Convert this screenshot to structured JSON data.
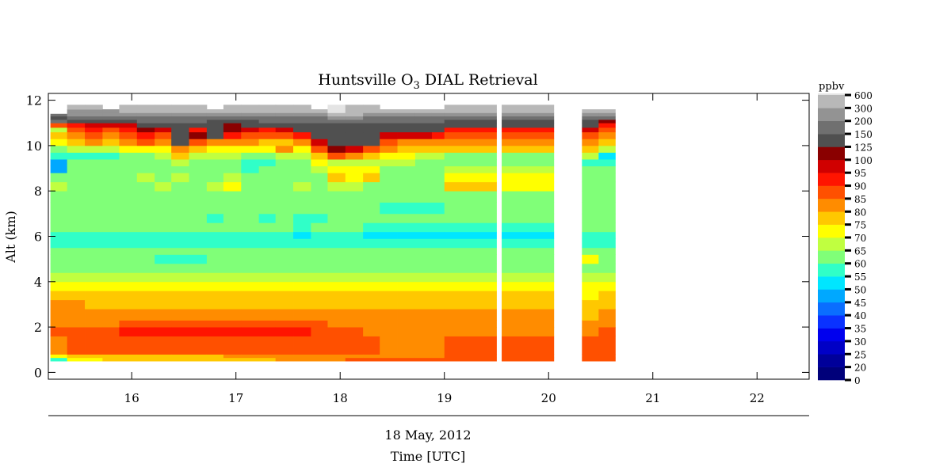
{
  "chart_data": {
    "type": "heatmap",
    "title_prefix": "Huntsville O",
    "title_subscript": "3",
    "title_suffix": " DIAL Retrieval",
    "ylabel": "Alt (km)",
    "xlabel": "Time [UTC]",
    "date_label": "18 May, 2012",
    "xlim": [
      15.2,
      22.5
    ],
    "ylim": [
      -0.3,
      12.3
    ],
    "x_ticks": [
      16,
      17,
      18,
      19,
      20,
      21,
      22
    ],
    "y_ticks": [
      0,
      2,
      4,
      6,
      8,
      10,
      12
    ],
    "colorbar": {
      "unit": "ppbv",
      "levels": [
        "0",
        "20",
        "25",
        "30",
        "35",
        "40",
        "45",
        "50",
        "55",
        "60",
        "65",
        "70",
        "75",
        "80",
        "85",
        "90",
        "95",
        "100",
        "125",
        "150",
        "200",
        "300",
        "600"
      ],
      "colors": [
        "#00007a",
        "#00009a",
        "#0000c6",
        "#0000ee",
        "#0a32ff",
        "#0a6eff",
        "#00a8ff",
        "#00e6ff",
        "#30ffc8",
        "#80ff78",
        "#c0ff40",
        "#ffff00",
        "#ffc800",
        "#ff8c00",
        "#ff5000",
        "#ff1400",
        "#d00000",
        "#8a0000",
        "#505050",
        "#707070",
        "#939393",
        "#b8b8b8",
        "#e4e4e4"
      ]
    },
    "y_levels": [
      0.5,
      0.65,
      0.8,
      1.6,
      2.0,
      2.3,
      2.8,
      3.2,
      3.6,
      4.0,
      4.4,
      4.8,
      5.2,
      5.5,
      5.9,
      6.2,
      6.6,
      7.0,
      7.5,
      8.0,
      8.4,
      8.8,
      9.1,
      9.4,
      9.7,
      10.0,
      10.3,
      10.6,
      10.8,
      11.0,
      11.15,
      11.3,
      11.45,
      11.6,
      11.8,
      12.0
    ],
    "profiles": [
      {
        "x0": 15.22,
        "x1": 15.38,
        "top": 11.4,
        "p": [
          55,
          70,
          80,
          85,
          80,
          80,
          80,
          75,
          70,
          65,
          60,
          60,
          60,
          55,
          55,
          60,
          60,
          60,
          60,
          65,
          60,
          45,
          45,
          55,
          60,
          70,
          75,
          65,
          85,
          150,
          125,
          150,
          200,
          300
        ]
      },
      {
        "x0": 15.38,
        "x1": 15.55,
        "top": 12.0,
        "p": [
          70,
          75,
          85,
          85,
          80,
          80,
          80,
          75,
          70,
          65,
          60,
          60,
          60,
          55,
          55,
          60,
          60,
          60,
          60,
          60,
          60,
          60,
          60,
          55,
          65,
          75,
          80,
          85,
          90,
          125,
          150,
          200,
          200,
          300
        ]
      },
      {
        "x0": 15.55,
        "x1": 15.72,
        "top": 12.0,
        "p": [
          70,
          75,
          85,
          85,
          80,
          80,
          75,
          75,
          70,
          65,
          60,
          60,
          60,
          55,
          55,
          60,
          60,
          60,
          60,
          60,
          60,
          60,
          60,
          55,
          65,
          80,
          85,
          90,
          95,
          125,
          150,
          200,
          200,
          300
        ]
      },
      {
        "x0": 15.72,
        "x1": 15.88,
        "top": 11.6,
        "p": [
          75,
          75,
          85,
          85,
          80,
          80,
          75,
          75,
          70,
          65,
          60,
          60,
          60,
          55,
          55,
          60,
          60,
          60,
          60,
          60,
          60,
          60,
          60,
          55,
          65,
          75,
          80,
          85,
          95,
          125,
          150,
          200,
          200
        ]
      },
      {
        "x0": 15.88,
        "x1": 16.05,
        "top": 12.0,
        "p": [
          75,
          75,
          85,
          90,
          85,
          80,
          75,
          75,
          70,
          65,
          60,
          60,
          60,
          55,
          55,
          60,
          60,
          60,
          60,
          60,
          60,
          60,
          60,
          60,
          70,
          80,
          85,
          90,
          95,
          125,
          150,
          200,
          300,
          300
        ]
      },
      {
        "x0": 16.05,
        "x1": 16.22,
        "top": 12.0,
        "p": [
          75,
          75,
          85,
          90,
          85,
          80,
          75,
          75,
          70,
          65,
          60,
          60,
          60,
          55,
          55,
          60,
          60,
          60,
          60,
          60,
          65,
          60,
          60,
          60,
          70,
          85,
          90,
          100,
          125,
          150,
          150,
          200,
          300,
          300
        ]
      },
      {
        "x0": 16.22,
        "x1": 16.38,
        "top": 12.0,
        "p": [
          75,
          75,
          85,
          90,
          85,
          80,
          75,
          75,
          70,
          65,
          60,
          55,
          60,
          55,
          55,
          60,
          60,
          60,
          60,
          65,
          60,
          60,
          60,
          65,
          70,
          80,
          85,
          95,
          125,
          150,
          150,
          200,
          300,
          300
        ]
      },
      {
        "x0": 16.38,
        "x1": 16.55,
        "top": 12.0,
        "p": [
          75,
          75,
          85,
          90,
          85,
          80,
          75,
          75,
          70,
          65,
          60,
          55,
          60,
          55,
          55,
          60,
          60,
          60,
          60,
          60,
          65,
          60,
          65,
          75,
          80,
          125,
          125,
          125,
          125,
          150,
          150,
          200,
          300,
          300
        ]
      },
      {
        "x0": 16.55,
        "x1": 16.72,
        "top": 12.0,
        "p": [
          75,
          75,
          85,
          90,
          85,
          80,
          75,
          75,
          70,
          65,
          60,
          55,
          60,
          55,
          55,
          60,
          60,
          60,
          60,
          60,
          60,
          60,
          60,
          65,
          75,
          85,
          100,
          90,
          125,
          150,
          150,
          200,
          300,
          300
        ]
      },
      {
        "x0": 16.72,
        "x1": 16.88,
        "top": 11.8,
        "p": [
          75,
          75,
          85,
          90,
          85,
          80,
          75,
          75,
          70,
          65,
          60,
          60,
          60,
          55,
          55,
          60,
          55,
          60,
          60,
          65,
          60,
          60,
          60,
          65,
          70,
          80,
          125,
          125,
          125,
          125,
          150,
          200,
          300
        ]
      },
      {
        "x0": 16.88,
        "x1": 17.05,
        "top": 12.0,
        "p": [
          75,
          80,
          85,
          90,
          85,
          80,
          75,
          75,
          70,
          65,
          60,
          60,
          60,
          55,
          55,
          60,
          60,
          60,
          60,
          70,
          65,
          60,
          60,
          65,
          70,
          80,
          90,
          100,
          100,
          125,
          150,
          200,
          300,
          300
        ]
      },
      {
        "x0": 17.05,
        "x1": 17.22,
        "top": 12.0,
        "p": [
          75,
          80,
          85,
          90,
          85,
          80,
          75,
          75,
          70,
          65,
          60,
          60,
          60,
          55,
          55,
          60,
          60,
          60,
          60,
          60,
          60,
          55,
          55,
          60,
          70,
          80,
          85,
          95,
          125,
          125,
          150,
          200,
          300,
          300
        ]
      },
      {
        "x0": 17.22,
        "x1": 17.38,
        "top": 12.0,
        "p": [
          75,
          80,
          85,
          90,
          85,
          80,
          75,
          75,
          70,
          65,
          60,
          60,
          60,
          55,
          55,
          60,
          55,
          60,
          60,
          60,
          60,
          60,
          55,
          60,
          70,
          75,
          85,
          90,
          125,
          150,
          150,
          200,
          300,
          300
        ]
      },
      {
        "x0": 17.38,
        "x1": 17.55,
        "top": 12.0,
        "p": [
          80,
          80,
          85,
          90,
          85,
          80,
          75,
          75,
          70,
          65,
          60,
          60,
          60,
          55,
          55,
          60,
          60,
          60,
          60,
          60,
          60,
          60,
          60,
          65,
          80,
          75,
          85,
          95,
          125,
          150,
          150,
          200,
          300,
          300
        ]
      },
      {
        "x0": 17.55,
        "x1": 17.72,
        "top": 12.0,
        "p": [
          80,
          80,
          85,
          90,
          85,
          80,
          75,
          75,
          70,
          65,
          60,
          60,
          60,
          55,
          50,
          55,
          55,
          60,
          60,
          65,
          60,
          60,
          60,
          65,
          70,
          80,
          90,
          125,
          125,
          150,
          150,
          200,
          300,
          300
        ]
      },
      {
        "x0": 17.72,
        "x1": 17.88,
        "top": 11.8,
        "p": [
          80,
          80,
          85,
          85,
          85,
          80,
          75,
          75,
          70,
          65,
          60,
          60,
          60,
          55,
          55,
          60,
          55,
          60,
          60,
          60,
          60,
          65,
          70,
          75,
          85,
          95,
          125,
          125,
          125,
          150,
          150,
          200,
          300
        ]
      },
      {
        "x0": 17.88,
        "x1": 18.05,
        "top": 12.0,
        "p": [
          80,
          80,
          85,
          85,
          80,
          80,
          75,
          75,
          70,
          65,
          60,
          60,
          60,
          55,
          55,
          60,
          60,
          60,
          60,
          65,
          75,
          70,
          65,
          85,
          100,
          125,
          125,
          125,
          125,
          150,
          200,
          300,
          600,
          600
        ]
      },
      {
        "x0": 18.05,
        "x1": 18.22,
        "top": 12.0,
        "p": [
          85,
          80,
          85,
          85,
          80,
          80,
          75,
          75,
          70,
          65,
          60,
          60,
          60,
          55,
          55,
          60,
          60,
          60,
          60,
          65,
          70,
          70,
          65,
          80,
          95,
          125,
          125,
          125,
          125,
          150,
          200,
          300,
          300,
          300
        ]
      },
      {
        "x0": 18.22,
        "x1": 18.38,
        "top": 12.0,
        "p": [
          85,
          80,
          85,
          80,
          80,
          80,
          75,
          75,
          70,
          65,
          60,
          60,
          60,
          55,
          50,
          55,
          60,
          60,
          60,
          60,
          75,
          70,
          65,
          75,
          85,
          125,
          125,
          125,
          125,
          150,
          150,
          200,
          300,
          300
        ]
      },
      {
        "x0": 18.38,
        "x1": 18.55,
        "top": 11.8,
        "p": [
          85,
          80,
          80,
          80,
          80,
          80,
          75,
          75,
          70,
          65,
          60,
          60,
          60,
          55,
          50,
          55,
          60,
          55,
          60,
          60,
          60,
          60,
          65,
          70,
          80,
          85,
          95,
          125,
          125,
          150,
          150,
          200,
          300
        ]
      },
      {
        "x0": 18.55,
        "x1": 18.72,
        "top": 11.8,
        "p": [
          85,
          80,
          80,
          80,
          80,
          80,
          75,
          75,
          70,
          65,
          60,
          60,
          60,
          55,
          50,
          55,
          60,
          55,
          60,
          60,
          60,
          60,
          65,
          70,
          75,
          80,
          95,
          125,
          125,
          150,
          150,
          200,
          300
        ]
      },
      {
        "x0": 18.72,
        "x1": 18.88,
        "top": 11.8,
        "p": [
          85,
          80,
          80,
          80,
          80,
          80,
          75,
          75,
          70,
          65,
          60,
          60,
          60,
          55,
          50,
          55,
          60,
          55,
          60,
          60,
          60,
          60,
          60,
          65,
          75,
          80,
          95,
          125,
          125,
          150,
          150,
          200,
          300
        ]
      },
      {
        "x0": 18.88,
        "x1": 19.0,
        "top": 11.8,
        "p": [
          85,
          80,
          80,
          80,
          80,
          80,
          75,
          75,
          70,
          65,
          60,
          60,
          60,
          55,
          50,
          55,
          60,
          55,
          60,
          60,
          60,
          60,
          60,
          65,
          75,
          80,
          90,
          125,
          125,
          150,
          150,
          200,
          300
        ]
      },
      {
        "x0": 19.0,
        "x1": 19.5,
        "top": 12.0,
        "p": [
          85,
          85,
          85,
          80,
          80,
          80,
          75,
          75,
          70,
          65,
          60,
          60,
          60,
          55,
          50,
          55,
          60,
          60,
          60,
          75,
          70,
          65,
          60,
          60,
          75,
          80,
          85,
          90,
          125,
          125,
          150,
          200,
          300,
          300
        ]
      },
      {
        "x0": 19.55,
        "x1": 20.05,
        "top": 12.0,
        "p": [
          85,
          85,
          85,
          80,
          80,
          80,
          75,
          75,
          70,
          65,
          60,
          60,
          60,
          55,
          50,
          55,
          60,
          60,
          60,
          70,
          70,
          65,
          60,
          60,
          75,
          80,
          85,
          90,
          125,
          125,
          150,
          200,
          300,
          300
        ]
      },
      {
        "x0": 20.32,
        "x1": 20.48,
        "top": 11.8,
        "p": [
          85,
          85,
          85,
          80,
          80,
          75,
          75,
          70,
          70,
          65,
          60,
          70,
          60,
          55,
          55,
          60,
          60,
          60,
          60,
          60,
          60,
          60,
          55,
          65,
          75,
          80,
          85,
          95,
          125,
          125,
          150,
          200,
          300
        ]
      },
      {
        "x0": 20.48,
        "x1": 20.64,
        "top": 11.8,
        "p": [
          85,
          85,
          85,
          85,
          80,
          80,
          75,
          75,
          70,
          65,
          60,
          60,
          60,
          55,
          55,
          60,
          60,
          60,
          60,
          60,
          60,
          60,
          55,
          50,
          65,
          75,
          80,
          85,
          90,
          100,
          150,
          200,
          300
        ]
      }
    ]
  }
}
